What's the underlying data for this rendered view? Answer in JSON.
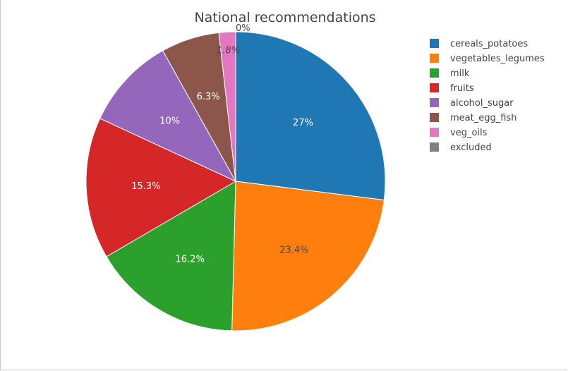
{
  "chart_data": {
    "type": "pie",
    "title": "National recommendations",
    "legend_position": "top-right",
    "sort": "descending",
    "direction": "clockwise",
    "slices": [
      {
        "label": "cereals_potatoes",
        "value": 27.0,
        "text": "27%",
        "color": "#1f77b4",
        "text_color": "#ffffff",
        "text_style": "normal",
        "text_side": "inside"
      },
      {
        "label": "vegetables_legumes",
        "value": 23.4,
        "text": "23.4%",
        "color": "#ff7f0e",
        "text_color": "#444444",
        "text_style": "normal",
        "text_side": "inside"
      },
      {
        "label": "milk",
        "value": 16.2,
        "text": "16.2%",
        "color": "#2ca02c",
        "text_color": "#ffffff",
        "text_style": "normal",
        "text_side": "inside"
      },
      {
        "label": "fruits",
        "value": 15.3,
        "text": "15.3%",
        "color": "#d62728",
        "text_color": "#ffffff",
        "text_style": "normal",
        "text_side": "inside"
      },
      {
        "label": "alcohol_sugar",
        "value": 10.0,
        "text": "10%",
        "color": "#9467bd",
        "text_color": "#ffffff",
        "text_style": "normal",
        "text_side": "inside"
      },
      {
        "label": "meat_egg_fish",
        "value": 6.3,
        "text": "6.3%",
        "color": "#8c564b",
        "text_color": "#ffffff",
        "text_style": "normal",
        "text_side": "inside"
      },
      {
        "label": "veg_oils",
        "value": 1.8,
        "text": "1.8%",
        "color": "#e377c2",
        "text_color": "#444444",
        "text_style": "italic",
        "text_side": "inside"
      },
      {
        "label": "excluded",
        "value": 0.0,
        "text": "0%",
        "color": "#7f7f7f",
        "text_color": "#444444",
        "text_style": "normal",
        "text_side": "outside"
      }
    ]
  }
}
